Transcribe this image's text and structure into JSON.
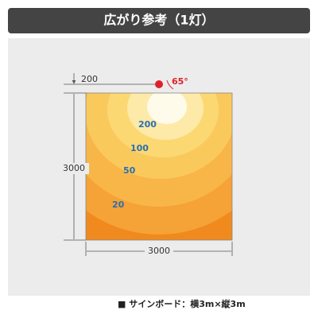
{
  "header": {
    "title": "広がり参考（1灯）"
  },
  "diagram": {
    "offset_label": "200",
    "angle_label": "65°",
    "height_label": "3000",
    "width_label": "3000",
    "contours": [
      "200",
      "100",
      "50",
      "20"
    ]
  },
  "footer": {
    "caption": "■ サインボード：横3m×縦3m"
  }
}
